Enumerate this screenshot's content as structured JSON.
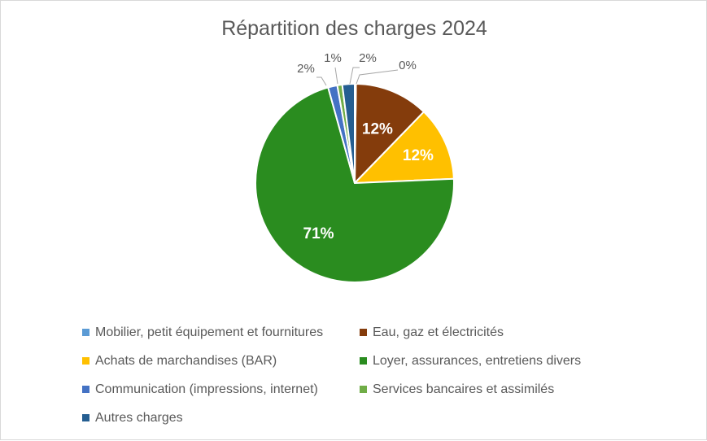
{
  "chart_data": {
    "type": "pie",
    "title": "Répartition des charges 2024",
    "slices": [
      {
        "name": "Eau, gaz et électricités",
        "value": 12,
        "label": "12%",
        "color": "#843C0C"
      },
      {
        "name": "Achats de marchandises (BAR)",
        "value": 12,
        "label": "12%",
        "color": "#FFC000"
      },
      {
        "name": "Loyer, assurances, entretiens divers",
        "value": 71,
        "label": "71%",
        "color": "#2A8C1F"
      },
      {
        "name": "Communication (impressions, internet)",
        "value": 1.5,
        "label": "2%",
        "color": "#4472C4"
      },
      {
        "name": "Services bancaires et assimilés",
        "value": 0.8,
        "label": "1%",
        "color": "#70AD47"
      },
      {
        "name": "Autres charges",
        "value": 2.0,
        "label": "2%",
        "color": "#255E91"
      },
      {
        "name": "Mobilier, petit équipement et fournitures",
        "value": 0.2,
        "label": "0%",
        "color": "#5B9BD5"
      }
    ],
    "legend": {
      "placement": "bottom",
      "entries": [
        {
          "label": "Mobilier, petit équipement et fournitures",
          "color": "#5B9BD5"
        },
        {
          "label": "Eau, gaz et électricités",
          "color": "#843C0C"
        },
        {
          "label": "Achats de marchandises (BAR)",
          "color": "#FFC000"
        },
        {
          "label": "Loyer, assurances, entretiens divers",
          "color": "#2A8C1F"
        },
        {
          "label": "Communication (impressions, internet)",
          "color": "#4472C4"
        },
        {
          "label": "Services bancaires et assimilés",
          "color": "#70AD47"
        },
        {
          "label": "Autres charges",
          "color": "#255E91"
        }
      ]
    }
  }
}
